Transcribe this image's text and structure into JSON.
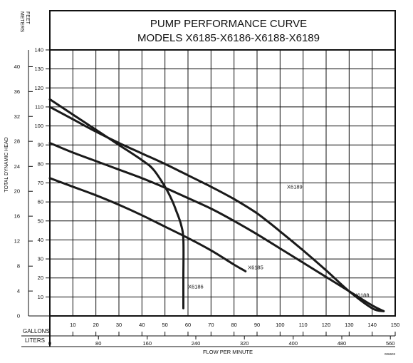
{
  "chart_data": {
    "type": "line",
    "title": "PUMP PERFORMANCE CURVE",
    "subtitle": "MODELS X6185-X6186-X6188-X6189",
    "xlabel": "FLOW PER MINUTE",
    "ylabel": "TOTAL DYNAMIC HEAD",
    "left_unit_labels": [
      "METERS",
      "FEET"
    ],
    "bottom_row_labels": [
      "GALLONS",
      "LITERS"
    ],
    "footnote": "006603",
    "xlim": [
      0,
      150
    ],
    "ylim_feet": [
      0,
      140
    ],
    "x_ticks_gallons": [
      10,
      20,
      30,
      40,
      50,
      60,
      70,
      80,
      90,
      100,
      110,
      120,
      130,
      140,
      150
    ],
    "x_ticks_liters": [
      {
        "label": "0",
        "gallons": 0
      },
      {
        "label": "80",
        "gallons": 21.1
      },
      {
        "label": "160",
        "gallons": 42.3
      },
      {
        "label": "240",
        "gallons": 63.4
      },
      {
        "label": "320",
        "gallons": 84.5
      },
      {
        "label": "400",
        "gallons": 105.7
      },
      {
        "label": "480",
        "gallons": 126.8
      },
      {
        "label": "560",
        "gallons": 147.9
      }
    ],
    "y_ticks_feet": [
      10,
      20,
      30,
      40,
      50,
      60,
      70,
      80,
      90,
      100,
      110,
      120,
      130,
      140
    ],
    "y_ticks_meters": [
      {
        "label": "0",
        "feet": 0
      },
      {
        "label": "4",
        "feet": 13.1
      },
      {
        "label": "8",
        "feet": 26.2
      },
      {
        "label": "12",
        "feet": 39.4
      },
      {
        "label": "16",
        "feet": 52.5
      },
      {
        "label": "20",
        "feet": 65.6
      },
      {
        "label": "24",
        "feet": 78.7
      },
      {
        "label": "28",
        "feet": 91.9
      },
      {
        "label": "32",
        "feet": 105
      },
      {
        "label": "36",
        "feet": 118.1
      },
      {
        "label": "40",
        "feet": 131.2
      }
    ],
    "grid": true,
    "series": [
      {
        "name": "X6189",
        "label_at": [
          103,
          67
        ],
        "x": [
          0,
          10,
          20,
          30,
          40,
          50,
          60,
          70,
          80,
          90,
          100,
          110,
          120,
          130,
          140,
          145
        ],
        "y": [
          110,
          103.5,
          97,
          91,
          85.5,
          80,
          74,
          68,
          61.5,
          54,
          44.5,
          34.5,
          24,
          13,
          4,
          2.5
        ]
      },
      {
        "name": "X6188",
        "label_at": [
          132,
          10
        ],
        "x": [
          0,
          10,
          20,
          30,
          40,
          50,
          60,
          70,
          80,
          90,
          100,
          110,
          120,
          130,
          140,
          145
        ],
        "y": [
          91,
          86,
          81.5,
          77,
          72.5,
          67.5,
          62,
          56.5,
          50,
          43,
          35.5,
          28,
          20.5,
          13,
          5.5,
          2.5
        ]
      },
      {
        "name": "X6185",
        "label_at": [
          86,
          24.5
        ],
        "x": [
          0,
          10,
          20,
          30,
          40,
          50,
          60,
          70,
          80,
          85
        ],
        "y": [
          72.5,
          68,
          63.5,
          58.5,
          53,
          47,
          41,
          34.5,
          27,
          23.5
        ]
      },
      {
        "name": "X6186",
        "label_at": [
          60,
          14.5
        ],
        "x": [
          0,
          10,
          20,
          30,
          40,
          45,
          50,
          53,
          55,
          57,
          58,
          58,
          58
        ],
        "y": [
          114,
          106,
          98,
          90,
          82,
          77,
          68,
          61,
          55,
          48,
          40,
          20,
          4
        ]
      }
    ]
  }
}
